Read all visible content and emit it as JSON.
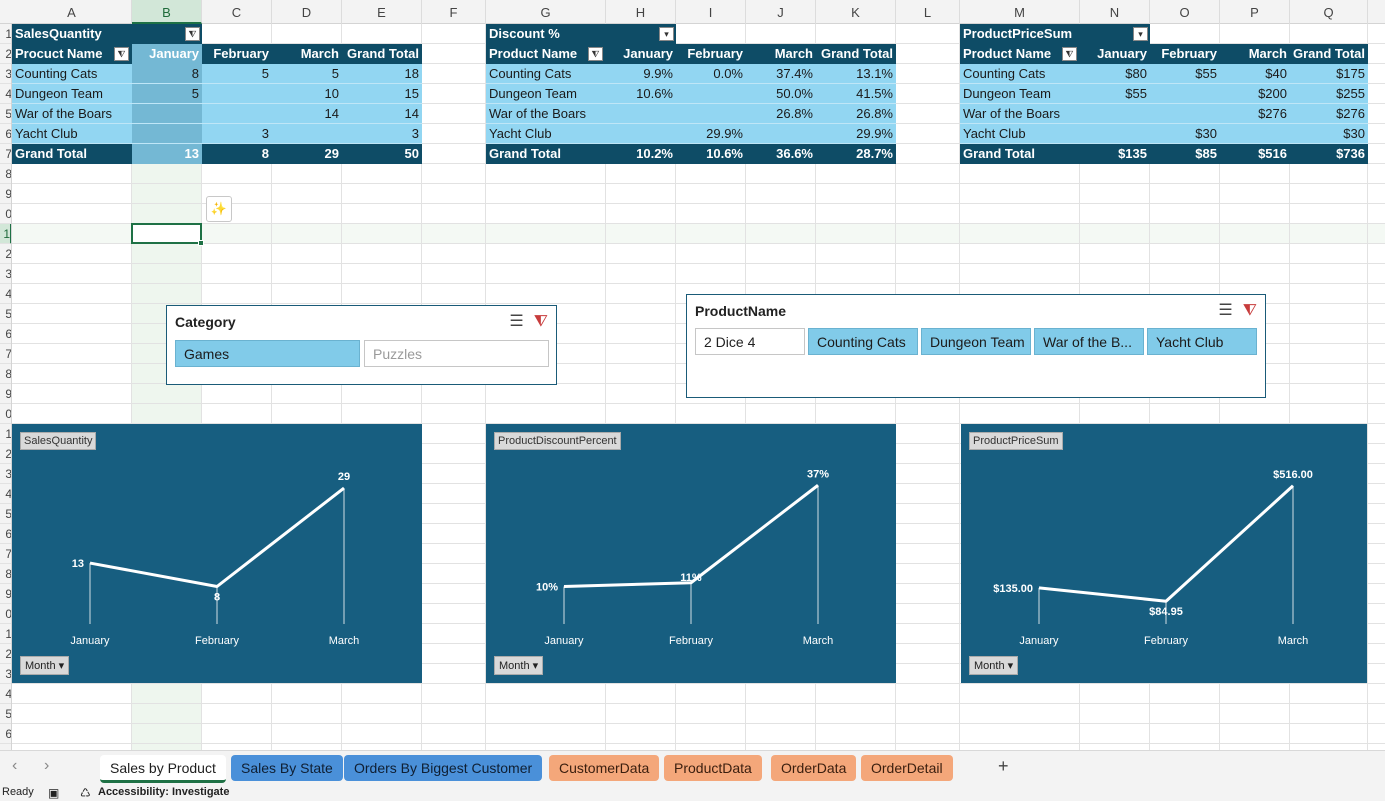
{
  "columns": [
    {
      "label": "A",
      "w": 120
    },
    {
      "label": "B",
      "w": 70,
      "selected": true
    },
    {
      "label": "C",
      "w": 70
    },
    {
      "label": "D",
      "w": 70
    },
    {
      "label": "E",
      "w": 80
    },
    {
      "label": "F",
      "w": 64
    },
    {
      "label": "G",
      "w": 120
    },
    {
      "label": "H",
      "w": 70
    },
    {
      "label": "I",
      "w": 70
    },
    {
      "label": "J",
      "w": 70
    },
    {
      "label": "K",
      "w": 80
    },
    {
      "label": "L",
      "w": 64
    },
    {
      "label": "M",
      "w": 120
    },
    {
      "label": "N",
      "w": 70
    },
    {
      "label": "O",
      "w": 70
    },
    {
      "label": "P",
      "w": 70
    },
    {
      "label": "Q",
      "w": 78
    }
  ],
  "rows": [
    "1",
    "2",
    "3",
    "4",
    "5",
    "6",
    "7",
    "8",
    "9",
    "0",
    "1",
    "2",
    "3",
    "4",
    "5",
    "6",
    "7",
    "8",
    "9",
    "0",
    "1",
    "2",
    "3",
    "4",
    "5",
    "6",
    "7",
    "8",
    "9",
    "0",
    "1",
    "2",
    "3",
    "4",
    "5",
    "6"
  ],
  "selected_row": 10,
  "pivots": [
    {
      "id": "sales",
      "title": "SalesQuantity",
      "row_label": "Procuct Name",
      "months": [
        "January",
        "February",
        "March",
        "Grand Total"
      ],
      "rows": [
        {
          "name": "Counting Cats",
          "vals": [
            "8",
            "5",
            "5",
            "18"
          ]
        },
        {
          "name": "Dungeon Team",
          "vals": [
            "5",
            "",
            "10",
            "15"
          ]
        },
        {
          "name": "War of the Boars",
          "vals": [
            "",
            "",
            "14",
            "14"
          ]
        },
        {
          "name": "Yacht Club",
          "vals": [
            "",
            "3",
            "",
            "3"
          ]
        }
      ],
      "total_label": "Grand Total",
      "totals": [
        "13",
        "8",
        "29",
        "50"
      ]
    },
    {
      "id": "discount",
      "title": "Discount %",
      "row_label": "Product Name",
      "months": [
        "January",
        "February",
        "March",
        "Grand Total"
      ],
      "rows": [
        {
          "name": "Counting Cats",
          "vals": [
            "9.9%",
            "0.0%",
            "37.4%",
            "13.1%"
          ]
        },
        {
          "name": "Dungeon Team",
          "vals": [
            "10.6%",
            "",
            "50.0%",
            "41.5%"
          ]
        },
        {
          "name": "War of the Boars",
          "vals": [
            "",
            "",
            "26.8%",
            "26.8%"
          ]
        },
        {
          "name": "Yacht Club",
          "vals": [
            "",
            "29.9%",
            "",
            "29.9%"
          ]
        }
      ],
      "total_label": "Grand Total",
      "totals": [
        "10.2%",
        "10.6%",
        "36.6%",
        "28.7%"
      ]
    },
    {
      "id": "price",
      "title": "ProductPriceSum",
      "row_label": "Product Name",
      "months": [
        "January",
        "February",
        "March",
        "Grand Total"
      ],
      "rows": [
        {
          "name": "Counting Cats",
          "vals": [
            "$80",
            "$55",
            "$40",
            "$175"
          ]
        },
        {
          "name": "Dungeon Team",
          "vals": [
            "$55",
            "",
            "$200",
            "$255"
          ]
        },
        {
          "name": "War of the Boars",
          "vals": [
            "",
            "",
            "$276",
            "$276"
          ]
        },
        {
          "name": "Yacht Club",
          "vals": [
            "",
            "$30",
            "",
            "$30"
          ]
        }
      ],
      "total_label": "Grand Total",
      "totals": [
        "$135",
        "$85",
        "$516",
        "$736"
      ]
    }
  ],
  "slicers": [
    {
      "id": "category",
      "title": "Category",
      "items": [
        {
          "label": "Games",
          "state": "on"
        },
        {
          "label": "Puzzles",
          "state": "off"
        }
      ]
    },
    {
      "id": "productname",
      "title": "ProductName",
      "items": [
        {
          "label": "2 Dice 4",
          "state": "nodata"
        },
        {
          "label": "Counting Cats",
          "state": "on"
        },
        {
          "label": "Dungeon Team",
          "state": "on"
        },
        {
          "label": "War of the B...",
          "state": "on"
        },
        {
          "label": "Yacht Club",
          "state": "on"
        }
      ]
    }
  ],
  "chart_data": [
    {
      "type": "line",
      "title": "SalesQuantity",
      "categories": [
        "January",
        "February",
        "March"
      ],
      "series": [
        {
          "values": [
            13,
            8,
            29
          ]
        }
      ],
      "labels": [
        "13",
        "8",
        "29"
      ],
      "ylim": [
        0,
        32
      ],
      "field_button": "Month",
      "grid": false
    },
    {
      "type": "line",
      "title": "ProductDiscountPercent",
      "categories": [
        "January",
        "February",
        "March"
      ],
      "series": [
        {
          "values": [
            10,
            11,
            37
          ]
        }
      ],
      "labels": [
        "10%",
        "11%",
        "37%"
      ],
      "ylim": [
        0,
        40
      ],
      "field_button": "Month",
      "grid": false
    },
    {
      "type": "line",
      "title": "ProductPriceSum",
      "categories": [
        "January",
        "February",
        "March"
      ],
      "series": [
        {
          "values": [
            135.0,
            84.95,
            516.0
          ]
        }
      ],
      "labels": [
        "$135.00",
        "$84.95",
        "$516.00"
      ],
      "ylim": [
        0,
        560
      ],
      "field_button": "Month",
      "grid": false
    }
  ],
  "sheet_tabs": [
    {
      "label": "Sales by Product",
      "style": "active"
    },
    {
      "label": "Sales By State",
      "style": "blue"
    },
    {
      "label": "Orders By Biggest Customer",
      "style": "blue"
    },
    {
      "label": "CustomerData",
      "style": "orange"
    },
    {
      "label": "ProductData",
      "style": "orange"
    },
    {
      "label": "OrderData",
      "style": "orange"
    },
    {
      "label": "OrderDetail",
      "style": "orange"
    }
  ],
  "add_sheet_label": "+",
  "status": {
    "ready": "Ready",
    "accessibility": "Accessibility: Investigate"
  },
  "colors": {
    "pivot_dark": "#0e4c66",
    "pivot_light": "#92d6f2",
    "chart_bg": "#175e80",
    "selection": "#1e7145",
    "slicer_on": "#81cbe9"
  }
}
